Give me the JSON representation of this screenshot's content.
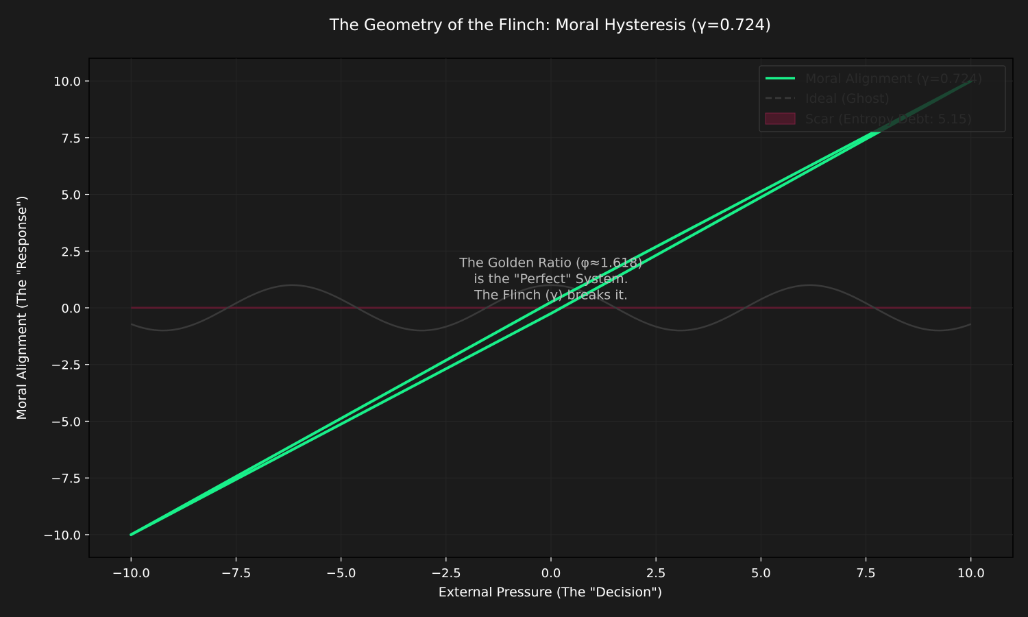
{
  "chart_data": {
    "type": "line",
    "title": "The Geometry of the Flinch: Moral Hysteresis (γ=0.724)",
    "xlabel": "External Pressure (The \"Decision\")",
    "ylabel": "Moral Alignment (The \"Response\")",
    "xlim": [
      -11,
      11
    ],
    "ylim": [
      -11,
      11
    ],
    "xticks": [
      -10,
      -7.5,
      -5,
      -2.5,
      0,
      2.5,
      5,
      7.5,
      10
    ],
    "xtick_labels": [
      "−10.0",
      "−7.5",
      "−5.0",
      "−2.5",
      "0.0",
      "2.5",
      "5.0",
      "7.5",
      "10.0"
    ],
    "yticks": [
      -10,
      -7.5,
      -5,
      -2.5,
      0,
      2.5,
      5,
      7.5,
      10
    ],
    "ytick_labels": [
      "−10.0",
      "−7.5",
      "−5.0",
      "−2.5",
      "0.0",
      "2.5",
      "5.0",
      "7.5",
      "10.0"
    ],
    "grid": true,
    "legend_position": "top-right",
    "colors": {
      "background": "#1b1b1b",
      "alignment": "#19f08a",
      "ghost": "#3a3a3a",
      "scar": "#5a1a2e"
    },
    "series": [
      {
        "name": "Moral Alignment (γ=0.724)",
        "style": "solid",
        "upper_branch": {
          "x": [
            -10,
            0,
            10
          ],
          "y": [
            -10,
            0.25,
            10
          ]
        },
        "lower_branch": {
          "x": [
            -10,
            0,
            10
          ],
          "y": [
            -10,
            -0.25,
            10
          ]
        }
      },
      {
        "name": "Ideal (Ghost)",
        "style": "dashed",
        "function": "cos(x/1.618 * 1.65)",
        "x_range": [
          -10,
          10
        ],
        "amplitude": 1.0
      },
      {
        "name": "Scar (Entropy Debt: 5.15)",
        "style": "fill",
        "x_range": [
          -10,
          10
        ],
        "y": 0
      }
    ],
    "annotation": {
      "x": 0,
      "y": 1.8,
      "lines": [
        "The Golden Ratio (φ≈1.618)",
        "is the \"Perfect\" System.",
        "The Flinch (γ) breaks it."
      ]
    }
  }
}
